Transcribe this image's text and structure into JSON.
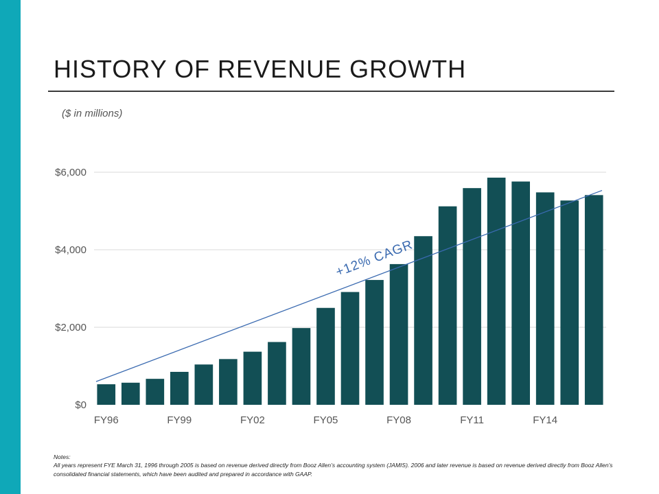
{
  "slide": {
    "title": "HISTORY OF REVENUE GROWTH",
    "units_note": "($ in millions)",
    "notes_heading": "Notes:",
    "notes_text": "All years represent FYE March 31, 1996 through 2005 is based on revenue derived directly from Booz Allen’s accounting system (JAMIS).  2006 and later revenue is based on revenue derived directly from Booz Allen’s consolidated financial statements, which have been audited and prepared in accordance with GAAP."
  },
  "colors": {
    "accent_bar": "#0fa8b8",
    "bar_fill": "#124f55",
    "trend_line": "#3a6ab0",
    "cagr_text": "#3a6ab0",
    "gridline": "#d9d9d9",
    "axis_label": "#555555"
  },
  "chart_data": {
    "type": "bar",
    "categories": [
      "FY96",
      "FY97",
      "FY98",
      "FY99",
      "FY00",
      "FY01",
      "FY02",
      "FY03",
      "FY04",
      "FY05",
      "FY06",
      "FY07",
      "FY08",
      "FY09",
      "FY10",
      "FY11",
      "FY12",
      "FY13",
      "FY14",
      "FY15",
      "FY16"
    ],
    "x_tick_labels": [
      "FY96",
      "FY99",
      "FY02",
      "FY05",
      "FY08",
      "FY11",
      "FY14"
    ],
    "values": [
      530,
      570,
      670,
      850,
      1040,
      1180,
      1370,
      1620,
      1980,
      2500,
      2910,
      3220,
      3630,
      4350,
      5120,
      5590,
      5860,
      5760,
      5480,
      5270,
      5410
    ],
    "ylim": [
      0,
      6000
    ],
    "y_ticks": [
      0,
      2000,
      4000,
      6000
    ],
    "y_tick_labels": [
      "$0",
      "$2,000",
      "$4,000",
      "$6,000"
    ],
    "grid": true,
    "trend_line": {
      "start_value": 600,
      "end_value": 5530
    },
    "annotation": "+12% CAGR",
    "xlabel": "",
    "ylabel": ""
  }
}
